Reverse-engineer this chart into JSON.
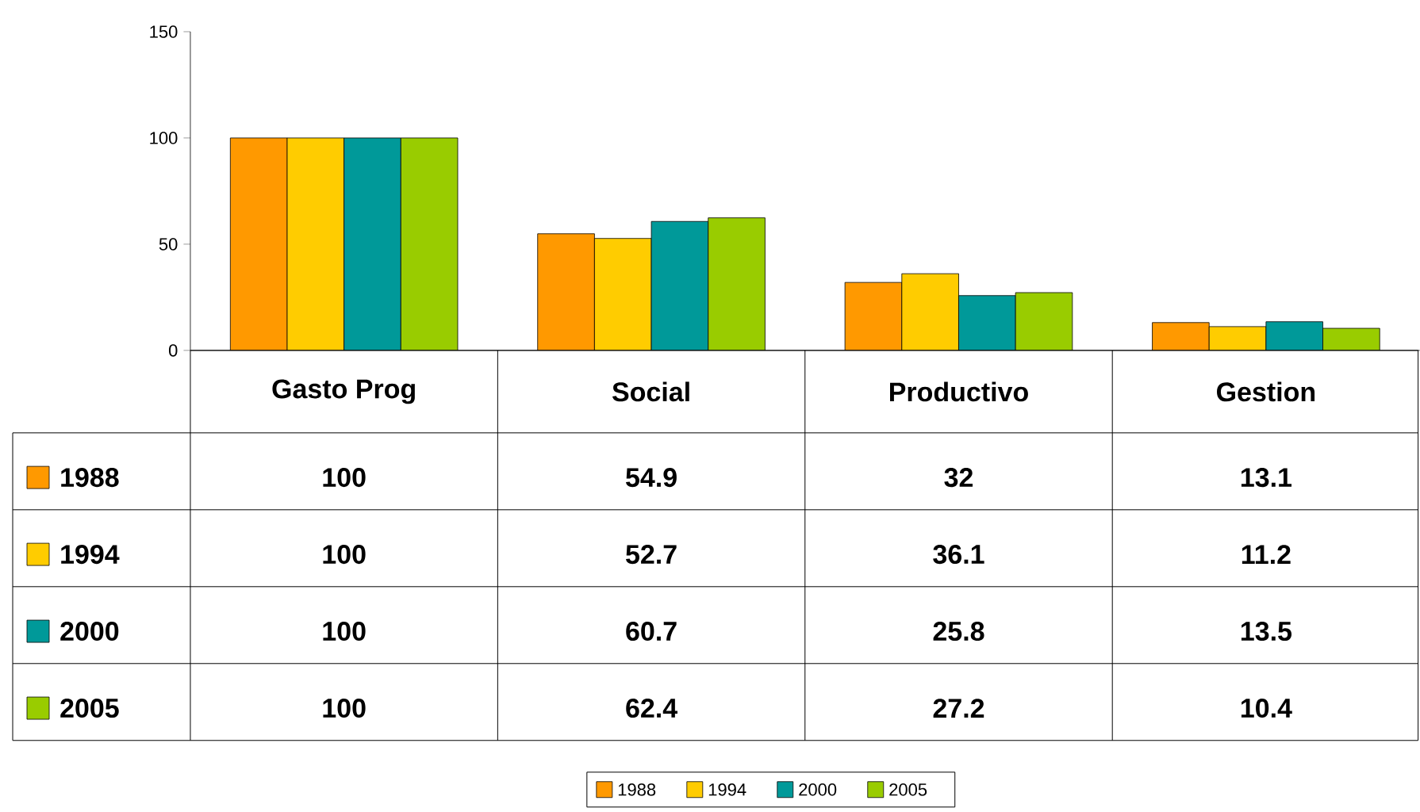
{
  "chart_data": {
    "type": "bar",
    "categories": [
      "Gasto Prog",
      "Social",
      "Productivo",
      "Gestion"
    ],
    "series": [
      {
        "name": "1988",
        "color": "#ff9900",
        "values": [
          100,
          54.9,
          32,
          13.1
        ]
      },
      {
        "name": "1994",
        "color": "#ffcc00",
        "values": [
          100,
          52.7,
          36.1,
          11.2
        ]
      },
      {
        "name": "2000",
        "color": "#009999",
        "values": [
          100,
          60.7,
          25.8,
          13.5
        ]
      },
      {
        "name": "2005",
        "color": "#99cc00",
        "values": [
          100,
          62.4,
          27.2,
          10.4
        ]
      }
    ],
    "ylim": [
      0,
      150
    ],
    "yticks": [
      0,
      50,
      100,
      150
    ],
    "legend": "bottom",
    "data_labels": true
  }
}
